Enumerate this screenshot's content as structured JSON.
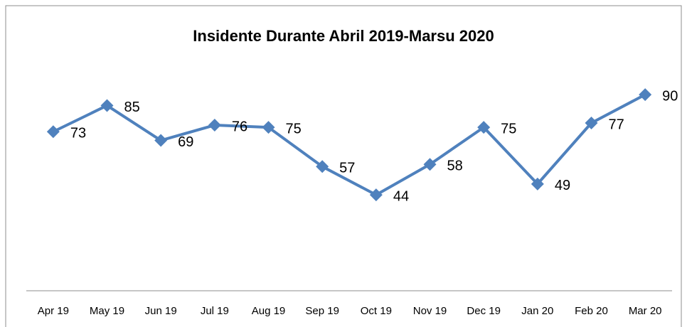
{
  "chart_data": {
    "type": "line",
    "title": "Insidente Durante Abril 2019-Marsu 2020",
    "categories": [
      "Apr 19",
      "May 19",
      "Jun 19",
      "Jul 19",
      "Aug 19",
      "Sep 19",
      "Oct 19",
      "Nov 19",
      "Dec 19",
      "Jan 20",
      "Feb 20",
      "Mar 20"
    ],
    "values": [
      73,
      85,
      69,
      76,
      75,
      57,
      44,
      58,
      75,
      49,
      77,
      90
    ],
    "color": "#4f81bd",
    "ylim": [
      0,
      100
    ]
  }
}
